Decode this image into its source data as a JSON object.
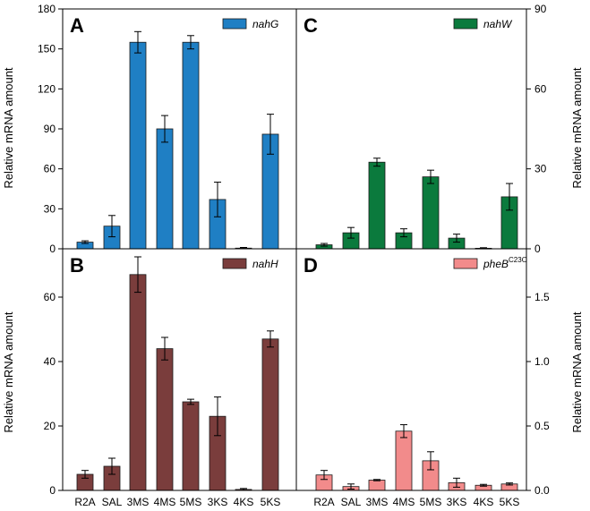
{
  "y_axis_label": "Relative mRNA amount",
  "categories": [
    "R2A",
    "SAL",
    "3MS",
    "4MS",
    "5MS",
    "3KS",
    "4KS",
    "5KS"
  ],
  "chart_data": [
    {
      "type": "bar",
      "panel": "A",
      "series": [
        {
          "name": "nahG",
          "color": "#1f7fc4",
          "values": [
            5,
            17,
            155,
            90,
            155,
            37,
            0.5,
            86
          ],
          "errors": [
            1,
            8,
            8,
            10,
            5,
            13,
            0.5,
            15
          ]
        }
      ],
      "ylim": [
        0,
        180
      ],
      "yticks": [
        "0",
        "30",
        "60",
        "90",
        "120",
        "150",
        "180"
      ],
      "y_axis": "left",
      "legend_position": "top-right"
    },
    {
      "type": "bar",
      "panel": "C",
      "series": [
        {
          "name": "nahW",
          "color": "#0b7a3d",
          "values": [
            1.5,
            6,
            32.5,
            6,
            27,
            4,
            0.2,
            19.5
          ],
          "errors": [
            0.5,
            2,
            1.5,
            1.5,
            2.5,
            1.5,
            0.2,
            5
          ]
        }
      ],
      "ylim": [
        0,
        90
      ],
      "yticks": [
        "0",
        "30",
        "60",
        "90"
      ],
      "y_axis": "right",
      "legend_position": "top-right"
    },
    {
      "type": "bar",
      "panel": "B",
      "series": [
        {
          "name": "nahH",
          "color": "#7a3d3c",
          "values": [
            5,
            7.5,
            67,
            44,
            27.5,
            23,
            0.3,
            47
          ],
          "errors": [
            1.2,
            2.5,
            5.5,
            3.5,
            0.8,
            6,
            0.3,
            2.5
          ]
        }
      ],
      "ylim": [
        0,
        75
      ],
      "yticks": [
        "0",
        "20",
        "40",
        "60"
      ],
      "y_axis": "left",
      "legend_position": "top-right"
    },
    {
      "type": "bar",
      "panel": "D",
      "series": [
        {
          "name": "pheB",
          "name_superscript": "C23O",
          "color": "#f28b8b",
          "values": [
            0.12,
            0.03,
            0.08,
            0.46,
            0.23,
            0.06,
            0.04,
            0.05
          ],
          "errors": [
            0.035,
            0.02,
            0.005,
            0.05,
            0.07,
            0.035,
            0.007,
            0.008
          ]
        }
      ],
      "ylim": [
        0,
        1.875
      ],
      "yticks": [
        "0.0",
        "0.5",
        "1.0",
        "1.5"
      ],
      "y_axis": "right",
      "legend_position": "top-right"
    }
  ]
}
